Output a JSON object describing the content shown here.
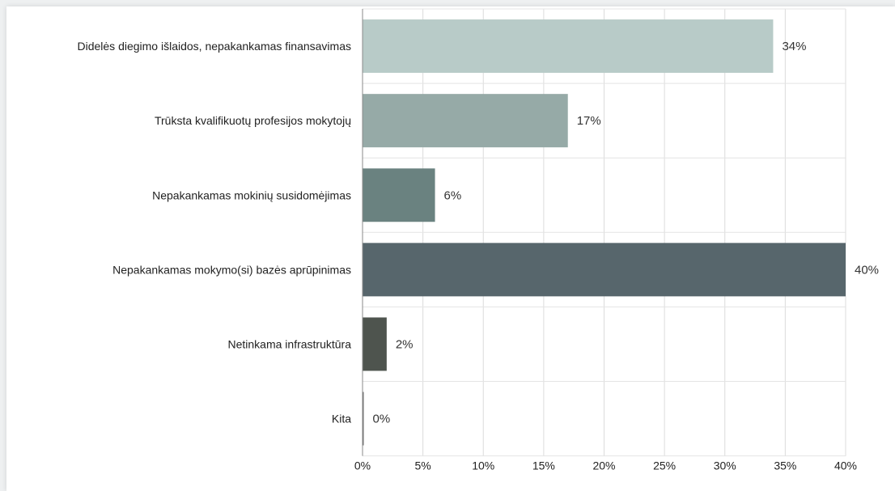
{
  "chart_data": {
    "type": "bar",
    "orientation": "horizontal",
    "categories": [
      "Didelės diegimo išlaidos, nepakankamas finansavimas",
      "Trūksta kvalifikuotų profesijos mokytojų",
      "Nepakankamas mokinių susidomėjimas",
      "Nepakankamas mokymo(si) bazės aprūpinimas",
      "Netinkama infrastruktūra",
      "Kita"
    ],
    "values": [
      34,
      17,
      6,
      40,
      2,
      0
    ],
    "value_labels": [
      "34%",
      "17%",
      "6%",
      "40%",
      "2%",
      "0%"
    ],
    "bar_colors": [
      "#b8cbc8",
      "#96aaa7",
      "#6a8280",
      "#57666c",
      "#4e544e",
      "#6b6b6b"
    ],
    "xlim": [
      0,
      40
    ],
    "xticks": [
      "0%",
      "5%",
      "10%",
      "15%",
      "20%",
      "25%",
      "30%",
      "35%",
      "40%"
    ],
    "grid": true
  }
}
